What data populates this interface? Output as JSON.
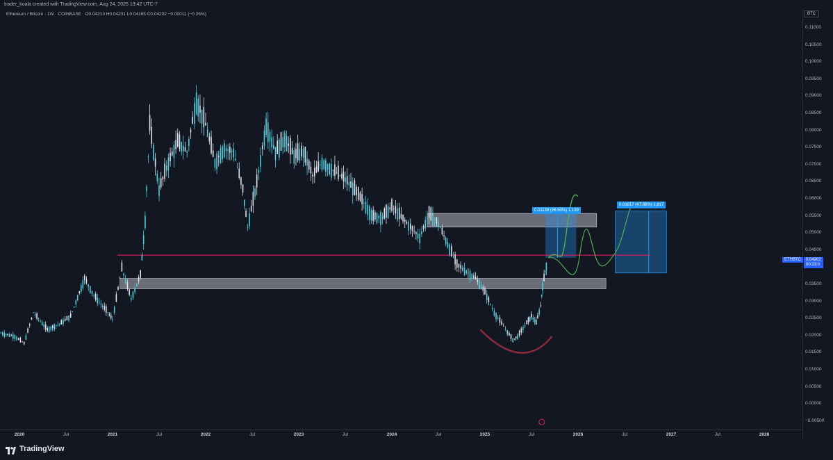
{
  "header": {
    "credit": "trader_koala created with TradingView.com, Aug 24, 2025 19:42 UTC-7",
    "symbol_line": "Ethereum / Bitcoin · 1W · COINBASE",
    "ohlc": "O0.04213  H0.04231  L0.04165  C0.04202  −0.00011 (−0.26%)"
  },
  "price_axis": {
    "currency": "BTC",
    "ticks": [
      "0.11000",
      "0.10500",
      "0.10000",
      "0.09500",
      "0.09000",
      "0.08500",
      "0.08000",
      "0.07500",
      "0.07000",
      "0.06500",
      "0.06000",
      "0.05500",
      "0.05000",
      "0.04500",
      "0.04000",
      "0.03500",
      "0.03000",
      "0.02500",
      "0.02000",
      "0.01500",
      "0.01000",
      "0.00500",
      "0.00000",
      "−0.00500"
    ],
    "symbol_tag": "ETHBTC",
    "last_price": "0.04202",
    "countdown": "00:23:h"
  },
  "time_axis": [
    {
      "label": "2020",
      "year": true
    },
    {
      "label": "Jul",
      "year": false
    },
    {
      "label": "2021",
      "year": true
    },
    {
      "label": "Jul",
      "year": false
    },
    {
      "label": "2022",
      "year": true
    },
    {
      "label": "Jul",
      "year": false
    },
    {
      "label": "2023",
      "year": true
    },
    {
      "label": "Jul",
      "year": false
    },
    {
      "label": "2024",
      "year": true
    },
    {
      "label": "Jul",
      "year": false
    },
    {
      "label": "2025",
      "year": true
    },
    {
      "label": "Jul",
      "year": false
    },
    {
      "label": "2026",
      "year": true
    },
    {
      "label": "Jul",
      "year": false
    },
    {
      "label": "2027",
      "year": true
    },
    {
      "label": "Jul",
      "year": false
    },
    {
      "label": "2028",
      "year": true
    }
  ],
  "drawings": {
    "measure_1": "0.01139 (26.50%) 1,139",
    "measure_2": "0.01817 (47.86%) 1,817",
    "colors": {
      "up": "#26a69a",
      "candle": "#4dd0e1",
      "resistance_line": "#e91e63",
      "zone": "#b2b5be",
      "projection": "#4caf50",
      "measure": "#2196f3",
      "arc": "#8e2a3c"
    }
  },
  "chart_data": {
    "type": "candlestick",
    "symbol": "ETHBTC",
    "timeframe": "1W",
    "exchange": "COINBASE",
    "series": [
      {
        "values": [
          [
            2019.8,
            0.0205
          ],
          [
            2019.95,
            0.0195
          ],
          [
            2020.05,
            0.0175
          ],
          [
            2020.15,
            0.0265
          ],
          [
            2020.3,
            0.0215
          ],
          [
            2020.45,
            0.0235
          ],
          [
            2020.55,
            0.0255
          ],
          [
            2020.7,
            0.0365
          ],
          [
            2020.8,
            0.0315
          ],
          [
            2020.95,
            0.0265
          ],
          [
            2021.0,
            0.0245
          ],
          [
            2021.1,
            0.0395
          ],
          [
            2021.2,
            0.0305
          ],
          [
            2021.3,
            0.0375
          ],
          [
            2021.35,
            0.0535
          ],
          [
            2021.4,
            0.0815
          ],
          [
            2021.5,
            0.0625
          ],
          [
            2021.6,
            0.0705
          ],
          [
            2021.7,
            0.0765
          ],
          [
            2021.8,
            0.0735
          ],
          [
            2021.9,
            0.0885
          ],
          [
            2022.0,
            0.0815
          ],
          [
            2022.1,
            0.0705
          ],
          [
            2022.2,
            0.0745
          ],
          [
            2022.3,
            0.0735
          ],
          [
            2022.4,
            0.0625
          ],
          [
            2022.45,
            0.0515
          ],
          [
            2022.55,
            0.0645
          ],
          [
            2022.65,
            0.0815
          ],
          [
            2022.75,
            0.0735
          ],
          [
            2022.85,
            0.0775
          ],
          [
            2022.95,
            0.0725
          ],
          [
            2023.05,
            0.0735
          ],
          [
            2023.15,
            0.0665
          ],
          [
            2023.25,
            0.0705
          ],
          [
            2023.35,
            0.0685
          ],
          [
            2023.5,
            0.0655
          ],
          [
            2023.6,
            0.0625
          ],
          [
            2023.7,
            0.0585
          ],
          [
            2023.8,
            0.0545
          ],
          [
            2023.9,
            0.0545
          ],
          [
            2024.0,
            0.0575
          ],
          [
            2024.1,
            0.0545
          ],
          [
            2024.2,
            0.0515
          ],
          [
            2024.3,
            0.0485
          ],
          [
            2024.4,
            0.0555
          ],
          [
            2024.5,
            0.0525
          ],
          [
            2024.6,
            0.0465
          ],
          [
            2024.7,
            0.0405
          ],
          [
            2024.8,
            0.0385
          ],
          [
            2024.9,
            0.0365
          ],
          [
            2025.0,
            0.0325
          ],
          [
            2025.1,
            0.0265
          ],
          [
            2025.2,
            0.0225
          ],
          [
            2025.3,
            0.0185
          ],
          [
            2025.35,
            0.0195
          ],
          [
            2025.45,
            0.0235
          ],
          [
            2025.5,
            0.0255
          ],
          [
            2025.55,
            0.0235
          ],
          [
            2025.6,
            0.0285
          ],
          [
            2025.62,
            0.0345
          ],
          [
            2025.65,
            0.0385
          ],
          [
            2025.67,
            0.042
          ]
        ]
      }
    ],
    "resistance_line": 0.0433,
    "support_zone": [
      0.0335,
      0.0365
    ],
    "upper_zone": [
      0.0515,
      0.0555
    ],
    "ylim": [
      -0.005,
      0.112
    ],
    "xlim": [
      2019.9,
      2028.4
    ]
  }
}
